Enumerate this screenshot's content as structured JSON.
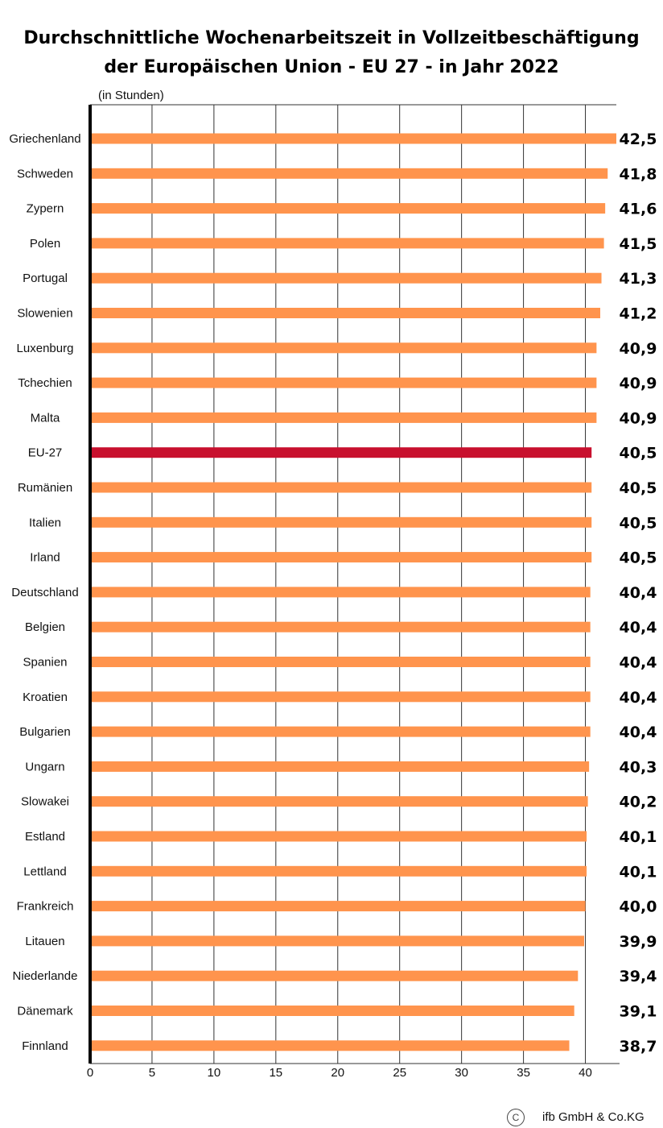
{
  "chart_data": {
    "type": "bar",
    "orientation": "horizontal",
    "title_line1": "Durchschnittliche Wochenarbeitszeit in Vollzeitbeschäftigung",
    "title_line2": "der Europäischen Union - EU 27 - in Jahr 2022",
    "unit_label": "(in Stunden)",
    "xlim": [
      0,
      42.5
    ],
    "xticks": [
      "0",
      "5",
      "10",
      "15",
      "20",
      "25",
      "30",
      "35",
      "40"
    ],
    "grid": true,
    "categories": [
      "Griechenland",
      "Schweden",
      "Zypern",
      "Polen",
      "Portugal",
      "Slowenien",
      "Luxenburg",
      "Tchechien",
      "Malta",
      "EU-27",
      "Rumänien",
      "Italien",
      "Irland",
      "Deutschland",
      "Belgien",
      "Spanien",
      "Kroatien",
      "Bulgarien",
      "Ungarn",
      "Slowakei",
      "Estland",
      "Lettland",
      "Frankreich",
      "Litauen",
      "Niederlande",
      "Dänemark",
      "Finnland"
    ],
    "values": [
      42.5,
      41.8,
      41.6,
      41.5,
      41.3,
      41.2,
      40.9,
      40.9,
      40.9,
      40.5,
      40.5,
      40.5,
      40.5,
      40.4,
      40.4,
      40.4,
      40.4,
      40.4,
      40.3,
      40.2,
      40.1,
      40.1,
      40.0,
      39.9,
      39.4,
      39.1,
      38.7
    ],
    "value_labels": [
      "42,5",
      "41,8",
      "41,6",
      "41,5",
      "41,3",
      "41,2",
      "40,9",
      "40,9",
      "40,9",
      "40,5",
      "40,5",
      "40,5",
      "40,5",
      "40,4",
      "40,4",
      "40,4",
      "40,4",
      "40,4",
      "40,3",
      "40,2",
      "40,1",
      "40,1",
      "40,0",
      "39,9",
      "39,4",
      "39,1",
      "38,7"
    ],
    "bar_color": "#ff944d",
    "highlight_category": "EU-27",
    "highlight_color": "#c8102e"
  },
  "footer": {
    "copyright_symbol": "C",
    "copyright_text": "ifb GmbH & Co.KG"
  }
}
